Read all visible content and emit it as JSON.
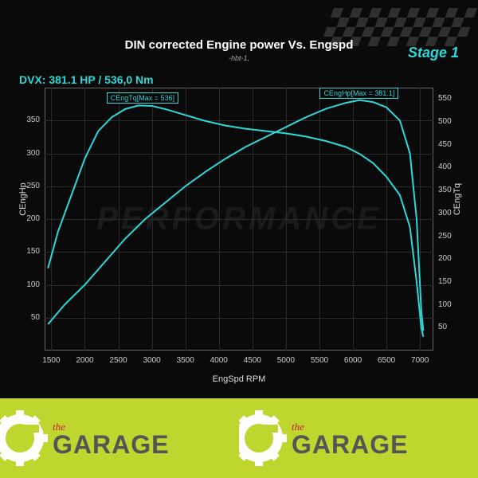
{
  "chart": {
    "title": "DIN corrected Engine power Vs. Engspd",
    "subtitle": "-hbt-1,",
    "stage_label": "Stage 1",
    "summary": "DVX:  381.1 HP / 536,0 Nm",
    "xlabel": "EngSpd RPM",
    "ylabel_left": "CEngHp",
    "ylabel_right": "CEngTq",
    "background_color": "#0a0a0a",
    "grid_color": "#2a2a2a",
    "text_color": "#dddddd",
    "accent_color": "#2dd8d8",
    "line_color": "#2dd8d8",
    "line_width": 2,
    "xlim": [
      1400,
      7200
    ],
    "ylim_left": [
      0,
      400
    ],
    "ylim_right": [
      0,
      575
    ],
    "xticks": [
      1500,
      2000,
      2500,
      3000,
      3500,
      4000,
      4500,
      5000,
      5500,
      6000,
      6500,
      7000
    ],
    "yticks_left": [
      50,
      100,
      150,
      200,
      250,
      300,
      350
    ],
    "yticks_right": [
      50,
      100,
      150,
      200,
      250,
      300,
      350,
      400,
      450,
      500,
      550
    ],
    "label_hp": "CEngHp[Max = 381.1]",
    "label_tq": "CEngTq[Max = 536]",
    "watermark_text": "PERFORMANCE",
    "hp_curve": [
      [
        1450,
        40
      ],
      [
        1700,
        70
      ],
      [
        2000,
        100
      ],
      [
        2300,
        135
      ],
      [
        2600,
        170
      ],
      [
        2900,
        200
      ],
      [
        3200,
        225
      ],
      [
        3500,
        250
      ],
      [
        3800,
        272
      ],
      [
        4100,
        292
      ],
      [
        4400,
        310
      ],
      [
        4700,
        325
      ],
      [
        5000,
        340
      ],
      [
        5300,
        355
      ],
      [
        5600,
        368
      ],
      [
        5900,
        377
      ],
      [
        6100,
        381
      ],
      [
        6300,
        378
      ],
      [
        6500,
        370
      ],
      [
        6700,
        350
      ],
      [
        6850,
        300
      ],
      [
        6950,
        200
      ],
      [
        7020,
        60
      ],
      [
        7050,
        30
      ]
    ],
    "tq_curve_on_right": [
      [
        1450,
        180
      ],
      [
        1600,
        260
      ],
      [
        1800,
        340
      ],
      [
        2000,
        420
      ],
      [
        2200,
        480
      ],
      [
        2400,
        510
      ],
      [
        2600,
        528
      ],
      [
        2800,
        536
      ],
      [
        3000,
        535
      ],
      [
        3200,
        528
      ],
      [
        3500,
        515
      ],
      [
        3800,
        502
      ],
      [
        4100,
        492
      ],
      [
        4400,
        485
      ],
      [
        4700,
        480
      ],
      [
        5000,
        475
      ],
      [
        5300,
        468
      ],
      [
        5600,
        458
      ],
      [
        5900,
        445
      ],
      [
        6100,
        430
      ],
      [
        6300,
        410
      ],
      [
        6500,
        380
      ],
      [
        6700,
        340
      ],
      [
        6850,
        270
      ],
      [
        6950,
        150
      ],
      [
        7020,
        50
      ],
      [
        7050,
        30
      ]
    ]
  },
  "footer": {
    "brand_small": "the",
    "brand_large": "GARAGE",
    "bg_color": "#c0d62f",
    "small_color": "#c02030",
    "large_color": "#555555"
  }
}
